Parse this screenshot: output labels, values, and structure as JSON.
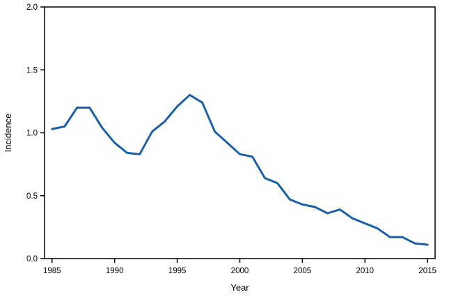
{
  "chart_data": {
    "type": "line",
    "title": "",
    "xlabel": "Year",
    "ylabel": "Incidence",
    "xlim": [
      1984.4,
      2015.6
    ],
    "ylim": [
      0,
      2.0
    ],
    "x_ticks": [
      1985,
      1990,
      1995,
      2000,
      2005,
      2010,
      2015
    ],
    "x_tick_labels": [
      "1985",
      "1990",
      "1995",
      "2000",
      "2005",
      "2010",
      "2015"
    ],
    "y_ticks": [
      0.0,
      0.5,
      1.0,
      1.5,
      2.0
    ],
    "y_tick_labels": [
      "0.0",
      "0.5",
      "1.0",
      "1.5",
      "2.0"
    ],
    "grid": false,
    "legend": "none",
    "line_color": "#1b5fa8",
    "line_width": 3,
    "frame_color": "#000000",
    "series": [
      {
        "name": "Incidence",
        "x": [
          1985,
          1986,
          1987,
          1988,
          1989,
          1990,
          1991,
          1992,
          1993,
          1994,
          1995,
          1996,
          1997,
          1998,
          1999,
          2000,
          2001,
          2002,
          2003,
          2004,
          2005,
          2006,
          2007,
          2008,
          2009,
          2010,
          2011,
          2012,
          2013,
          2014,
          2015
        ],
        "values": [
          1.03,
          1.05,
          1.2,
          1.2,
          1.04,
          0.92,
          0.84,
          0.83,
          1.01,
          1.09,
          1.21,
          1.3,
          1.24,
          1.01,
          0.92,
          0.83,
          0.81,
          0.64,
          0.6,
          0.47,
          0.43,
          0.41,
          0.36,
          0.39,
          0.32,
          0.28,
          0.24,
          0.17,
          0.17,
          0.12,
          0.11
        ]
      }
    ]
  }
}
